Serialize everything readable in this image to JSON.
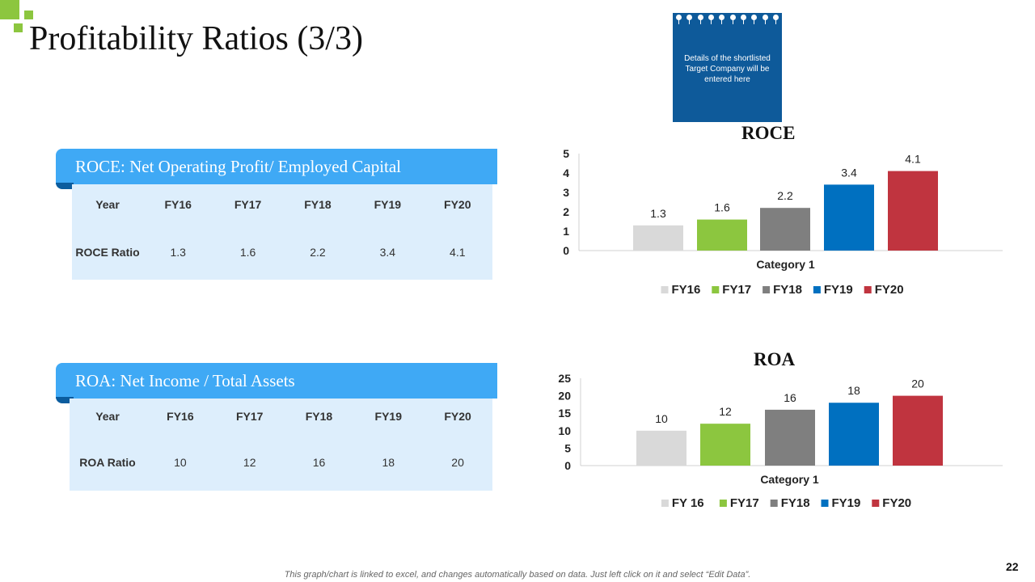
{
  "title": "Profitability Ratios (3/3)",
  "note": "Details of the shortlisted Target Company will be entered here",
  "tables": [
    {
      "header": "ROCE: Net Operating Profit/ Employed Capital",
      "columns": [
        "Year",
        "FY16",
        "FY17",
        "FY18",
        "FY19",
        "FY20"
      ],
      "row_label": "ROCE Ratio",
      "values": [
        "1.3",
        "1.6",
        "2.2",
        "3.4",
        "4.1"
      ]
    },
    {
      "header": "ROA: Net Income / Total Assets",
      "columns": [
        "Year",
        "FY16",
        "FY17",
        "FY18",
        "FY19",
        "FY20"
      ],
      "row_label": "ROA Ratio",
      "values": [
        "10",
        "12",
        "16",
        "18",
        "20"
      ]
    }
  ],
  "chart_data": [
    {
      "type": "bar",
      "title": "ROCE",
      "categories": [
        "Category 1"
      ],
      "xlabel": "Category 1",
      "ylim": [
        0,
        5
      ],
      "yticks": [
        "0",
        "1",
        "2",
        "3",
        "4",
        "5"
      ],
      "series": [
        {
          "name": "FY16",
          "values": [
            1.3
          ],
          "color": "#d9d9d9"
        },
        {
          "name": "FY17",
          "values": [
            1.6
          ],
          "color": "#8cc63f"
        },
        {
          "name": "FY18",
          "values": [
            2.2
          ],
          "color": "#7f7f7f"
        },
        {
          "name": "FY19",
          "values": [
            3.4
          ],
          "color": "#0070c0"
        },
        {
          "name": "FY20",
          "values": [
            4.1
          ],
          "color": "#c0343f"
        }
      ],
      "legend": "bottom",
      "grid": false
    },
    {
      "type": "bar",
      "title": "ROA",
      "categories": [
        "Category 1"
      ],
      "xlabel": "Category 1",
      "ylim": [
        0,
        25
      ],
      "yticks": [
        "0",
        "5",
        "10",
        "15",
        "20",
        "25"
      ],
      "series": [
        {
          "name": "FY 16",
          "values": [
            10
          ],
          "color": "#d9d9d9"
        },
        {
          "name": "FY17",
          "values": [
            12
          ],
          "color": "#8cc63f"
        },
        {
          "name": "FY18",
          "values": [
            16
          ],
          "color": "#7f7f7f"
        },
        {
          "name": "FY19",
          "values": [
            18
          ],
          "color": "#0070c0"
        },
        {
          "name": "FY20",
          "values": [
            20
          ],
          "color": "#c0343f"
        }
      ],
      "legend": "bottom",
      "grid": false
    }
  ],
  "footer": "This graph/chart is linked to excel, and changes automatically based on data. Just left click on it and select “Edit Data”.",
  "page_number": "22"
}
